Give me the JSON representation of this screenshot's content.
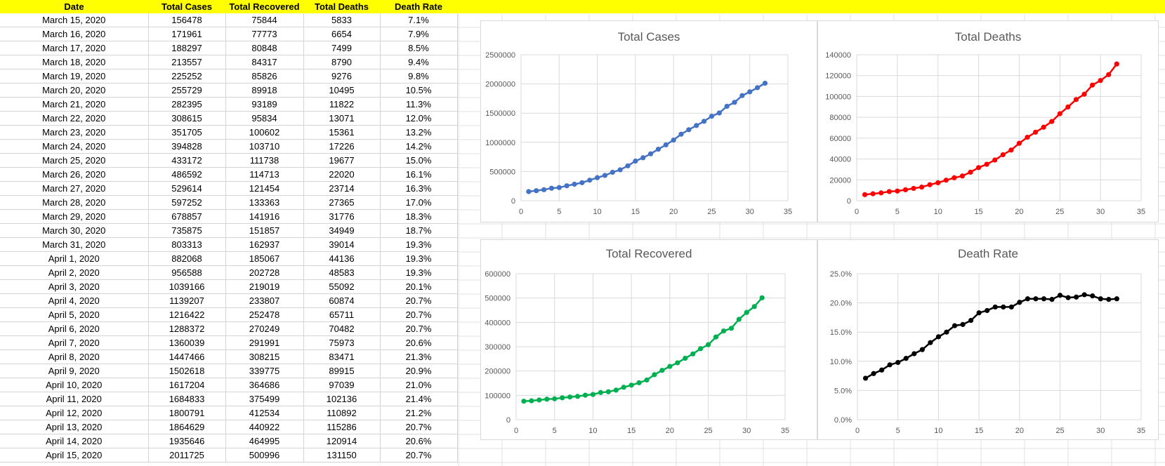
{
  "table": {
    "headers": [
      "Date",
      "Total Cases",
      "Total Recovered",
      "Total Deaths",
      "Death Rate"
    ],
    "rows": [
      [
        "March 15, 2020",
        "156478",
        "75844",
        "5833",
        "7.1%"
      ],
      [
        "March 16, 2020",
        "171961",
        "77773",
        "6654",
        "7.9%"
      ],
      [
        "March 17, 2020",
        "188297",
        "80848",
        "7499",
        "8.5%"
      ],
      [
        "March 18, 2020",
        "213557",
        "84317",
        "8790",
        "9.4%"
      ],
      [
        "March 19, 2020",
        "225252",
        "85826",
        "9276",
        "9.8%"
      ],
      [
        "March 20, 2020",
        "255729",
        "89918",
        "10495",
        "10.5%"
      ],
      [
        "March 21, 2020",
        "282395",
        "93189",
        "11822",
        "11.3%"
      ],
      [
        "March 22, 2020",
        "308615",
        "95834",
        "13071",
        "12.0%"
      ],
      [
        "March 23, 2020",
        "351705",
        "100602",
        "15361",
        "13.2%"
      ],
      [
        "March 24, 2020",
        "394828",
        "103710",
        "17226",
        "14.2%"
      ],
      [
        "March 25, 2020",
        "433172",
        "111738",
        "19677",
        "15.0%"
      ],
      [
        "March 26, 2020",
        "486592",
        "114713",
        "22020",
        "16.1%"
      ],
      [
        "March 27, 2020",
        "529614",
        "121454",
        "23714",
        "16.3%"
      ],
      [
        "March 28, 2020",
        "597252",
        "133363",
        "27365",
        "17.0%"
      ],
      [
        "March 29, 2020",
        "678857",
        "141916",
        "31776",
        "18.3%"
      ],
      [
        "March 30, 2020",
        "735875",
        "151857",
        "34949",
        "18.7%"
      ],
      [
        "March 31, 2020",
        "803313",
        "162937",
        "39014",
        "19.3%"
      ],
      [
        "April 1, 2020",
        "882068",
        "185067",
        "44136",
        "19.3%"
      ],
      [
        "April 2, 2020",
        "956588",
        "202728",
        "48583",
        "19.3%"
      ],
      [
        "April 3, 2020",
        "1039166",
        "219019",
        "55092",
        "20.1%"
      ],
      [
        "April 4, 2020",
        "1139207",
        "233807",
        "60874",
        "20.7%"
      ],
      [
        "April 5, 2020",
        "1216422",
        "252478",
        "65711",
        "20.7%"
      ],
      [
        "April 6, 2020",
        "1288372",
        "270249",
        "70482",
        "20.7%"
      ],
      [
        "April 7, 2020",
        "1360039",
        "291991",
        "75973",
        "20.6%"
      ],
      [
        "April 8, 2020",
        "1447466",
        "308215",
        "83471",
        "21.3%"
      ],
      [
        "April 9, 2020",
        "1502618",
        "339775",
        "89915",
        "20.9%"
      ],
      [
        "April 10, 2020",
        "1617204",
        "364686",
        "97039",
        "21.0%"
      ],
      [
        "April 11, 2020",
        "1684833",
        "375499",
        "102136",
        "21.4%"
      ],
      [
        "April 12, 2020",
        "1800791",
        "412534",
        "110892",
        "21.2%"
      ],
      [
        "April 13, 2020",
        "1864629",
        "440922",
        "115286",
        "20.7%"
      ],
      [
        "April 14, 2020",
        "1935646",
        "464995",
        "120914",
        "20.6%"
      ],
      [
        "April 15, 2020",
        "2011725",
        "500996",
        "131150",
        "20.7%"
      ]
    ]
  },
  "colors": {
    "header_fill": "#ffff00",
    "cases": "#4472c4",
    "deaths": "#ff0000",
    "recovered": "#00b050",
    "rate": "#000000"
  },
  "chart_data": [
    {
      "type": "line",
      "title": "Total Cases",
      "xlim": [
        0,
        35
      ],
      "ylim": [
        0,
        2500000
      ],
      "xticks": [
        "0",
        "5",
        "10",
        "15",
        "20",
        "25",
        "30",
        "35"
      ],
      "yticks": [
        "0",
        "500000",
        "1000000",
        "1500000",
        "2000000",
        "2500000"
      ],
      "grid": true,
      "x": [
        1,
        2,
        3,
        4,
        5,
        6,
        7,
        8,
        9,
        10,
        11,
        12,
        13,
        14,
        15,
        16,
        17,
        18,
        19,
        20,
        21,
        22,
        23,
        24,
        25,
        26,
        27,
        28,
        29,
        30,
        31,
        32
      ],
      "values": [
        156478,
        171961,
        188297,
        213557,
        225252,
        255729,
        282395,
        308615,
        351705,
        394828,
        433172,
        486592,
        529614,
        597252,
        678857,
        735875,
        803313,
        882068,
        956588,
        1039166,
        1139207,
        1216422,
        1288372,
        1360039,
        1447466,
        1502618,
        1617204,
        1684833,
        1800791,
        1864629,
        1935646,
        2011725
      ]
    },
    {
      "type": "line",
      "title": "Total Deaths",
      "xlim": [
        0,
        35
      ],
      "ylim": [
        0,
        140000
      ],
      "xticks": [
        "0",
        "5",
        "10",
        "15",
        "20",
        "25",
        "30",
        "35"
      ],
      "yticks": [
        "0",
        "20000",
        "40000",
        "60000",
        "80000",
        "100000",
        "120000",
        "140000"
      ],
      "grid": true,
      "x": [
        1,
        2,
        3,
        4,
        5,
        6,
        7,
        8,
        9,
        10,
        11,
        12,
        13,
        14,
        15,
        16,
        17,
        18,
        19,
        20,
        21,
        22,
        23,
        24,
        25,
        26,
        27,
        28,
        29,
        30,
        31,
        32
      ],
      "values": [
        5833,
        6654,
        7499,
        8790,
        9276,
        10495,
        11822,
        13071,
        15361,
        17226,
        19677,
        22020,
        23714,
        27365,
        31776,
        34949,
        39014,
        44136,
        48583,
        55092,
        60874,
        65711,
        70482,
        75973,
        83471,
        89915,
        97039,
        102136,
        110892,
        115286,
        120914,
        131150
      ]
    },
    {
      "type": "line",
      "title": "Total Recovered",
      "xlim": [
        0,
        35
      ],
      "ylim": [
        0,
        600000
      ],
      "xticks": [
        "0",
        "5",
        "10",
        "15",
        "20",
        "25",
        "30",
        "35"
      ],
      "yticks": [
        "0",
        "100000",
        "200000",
        "300000",
        "400000",
        "500000",
        "600000"
      ],
      "grid": true,
      "x": [
        1,
        2,
        3,
        4,
        5,
        6,
        7,
        8,
        9,
        10,
        11,
        12,
        13,
        14,
        15,
        16,
        17,
        18,
        19,
        20,
        21,
        22,
        23,
        24,
        25,
        26,
        27,
        28,
        29,
        30,
        31,
        32
      ],
      "values": [
        75844,
        77773,
        80848,
        84317,
        85826,
        89918,
        93189,
        95834,
        100602,
        103710,
        111738,
        114713,
        121454,
        133363,
        141916,
        151857,
        162937,
        185067,
        202728,
        219019,
        233807,
        252478,
        270249,
        291991,
        308215,
        339775,
        364686,
        375499,
        412534,
        440922,
        464995,
        500996
      ]
    },
    {
      "type": "line",
      "title": "Death Rate",
      "xlim": [
        0,
        35
      ],
      "ylim": [
        0,
        25
      ],
      "xticks": [
        "0",
        "5",
        "10",
        "15",
        "20",
        "25",
        "30",
        "35"
      ],
      "yticks": [
        "0.0%",
        "5.0%",
        "10.0%",
        "15.0%",
        "20.0%",
        "25.0%"
      ],
      "grid": true,
      "x": [
        1,
        2,
        3,
        4,
        5,
        6,
        7,
        8,
        9,
        10,
        11,
        12,
        13,
        14,
        15,
        16,
        17,
        18,
        19,
        20,
        21,
        22,
        23,
        24,
        25,
        26,
        27,
        28,
        29,
        30,
        31,
        32
      ],
      "values": [
        7.1,
        7.9,
        8.5,
        9.4,
        9.8,
        10.5,
        11.3,
        12.0,
        13.2,
        14.2,
        15.0,
        16.1,
        16.3,
        17.0,
        18.3,
        18.7,
        19.3,
        19.3,
        19.3,
        20.1,
        20.7,
        20.7,
        20.7,
        20.6,
        21.3,
        20.9,
        21.0,
        21.4,
        21.2,
        20.7,
        20.6,
        20.7
      ]
    }
  ]
}
